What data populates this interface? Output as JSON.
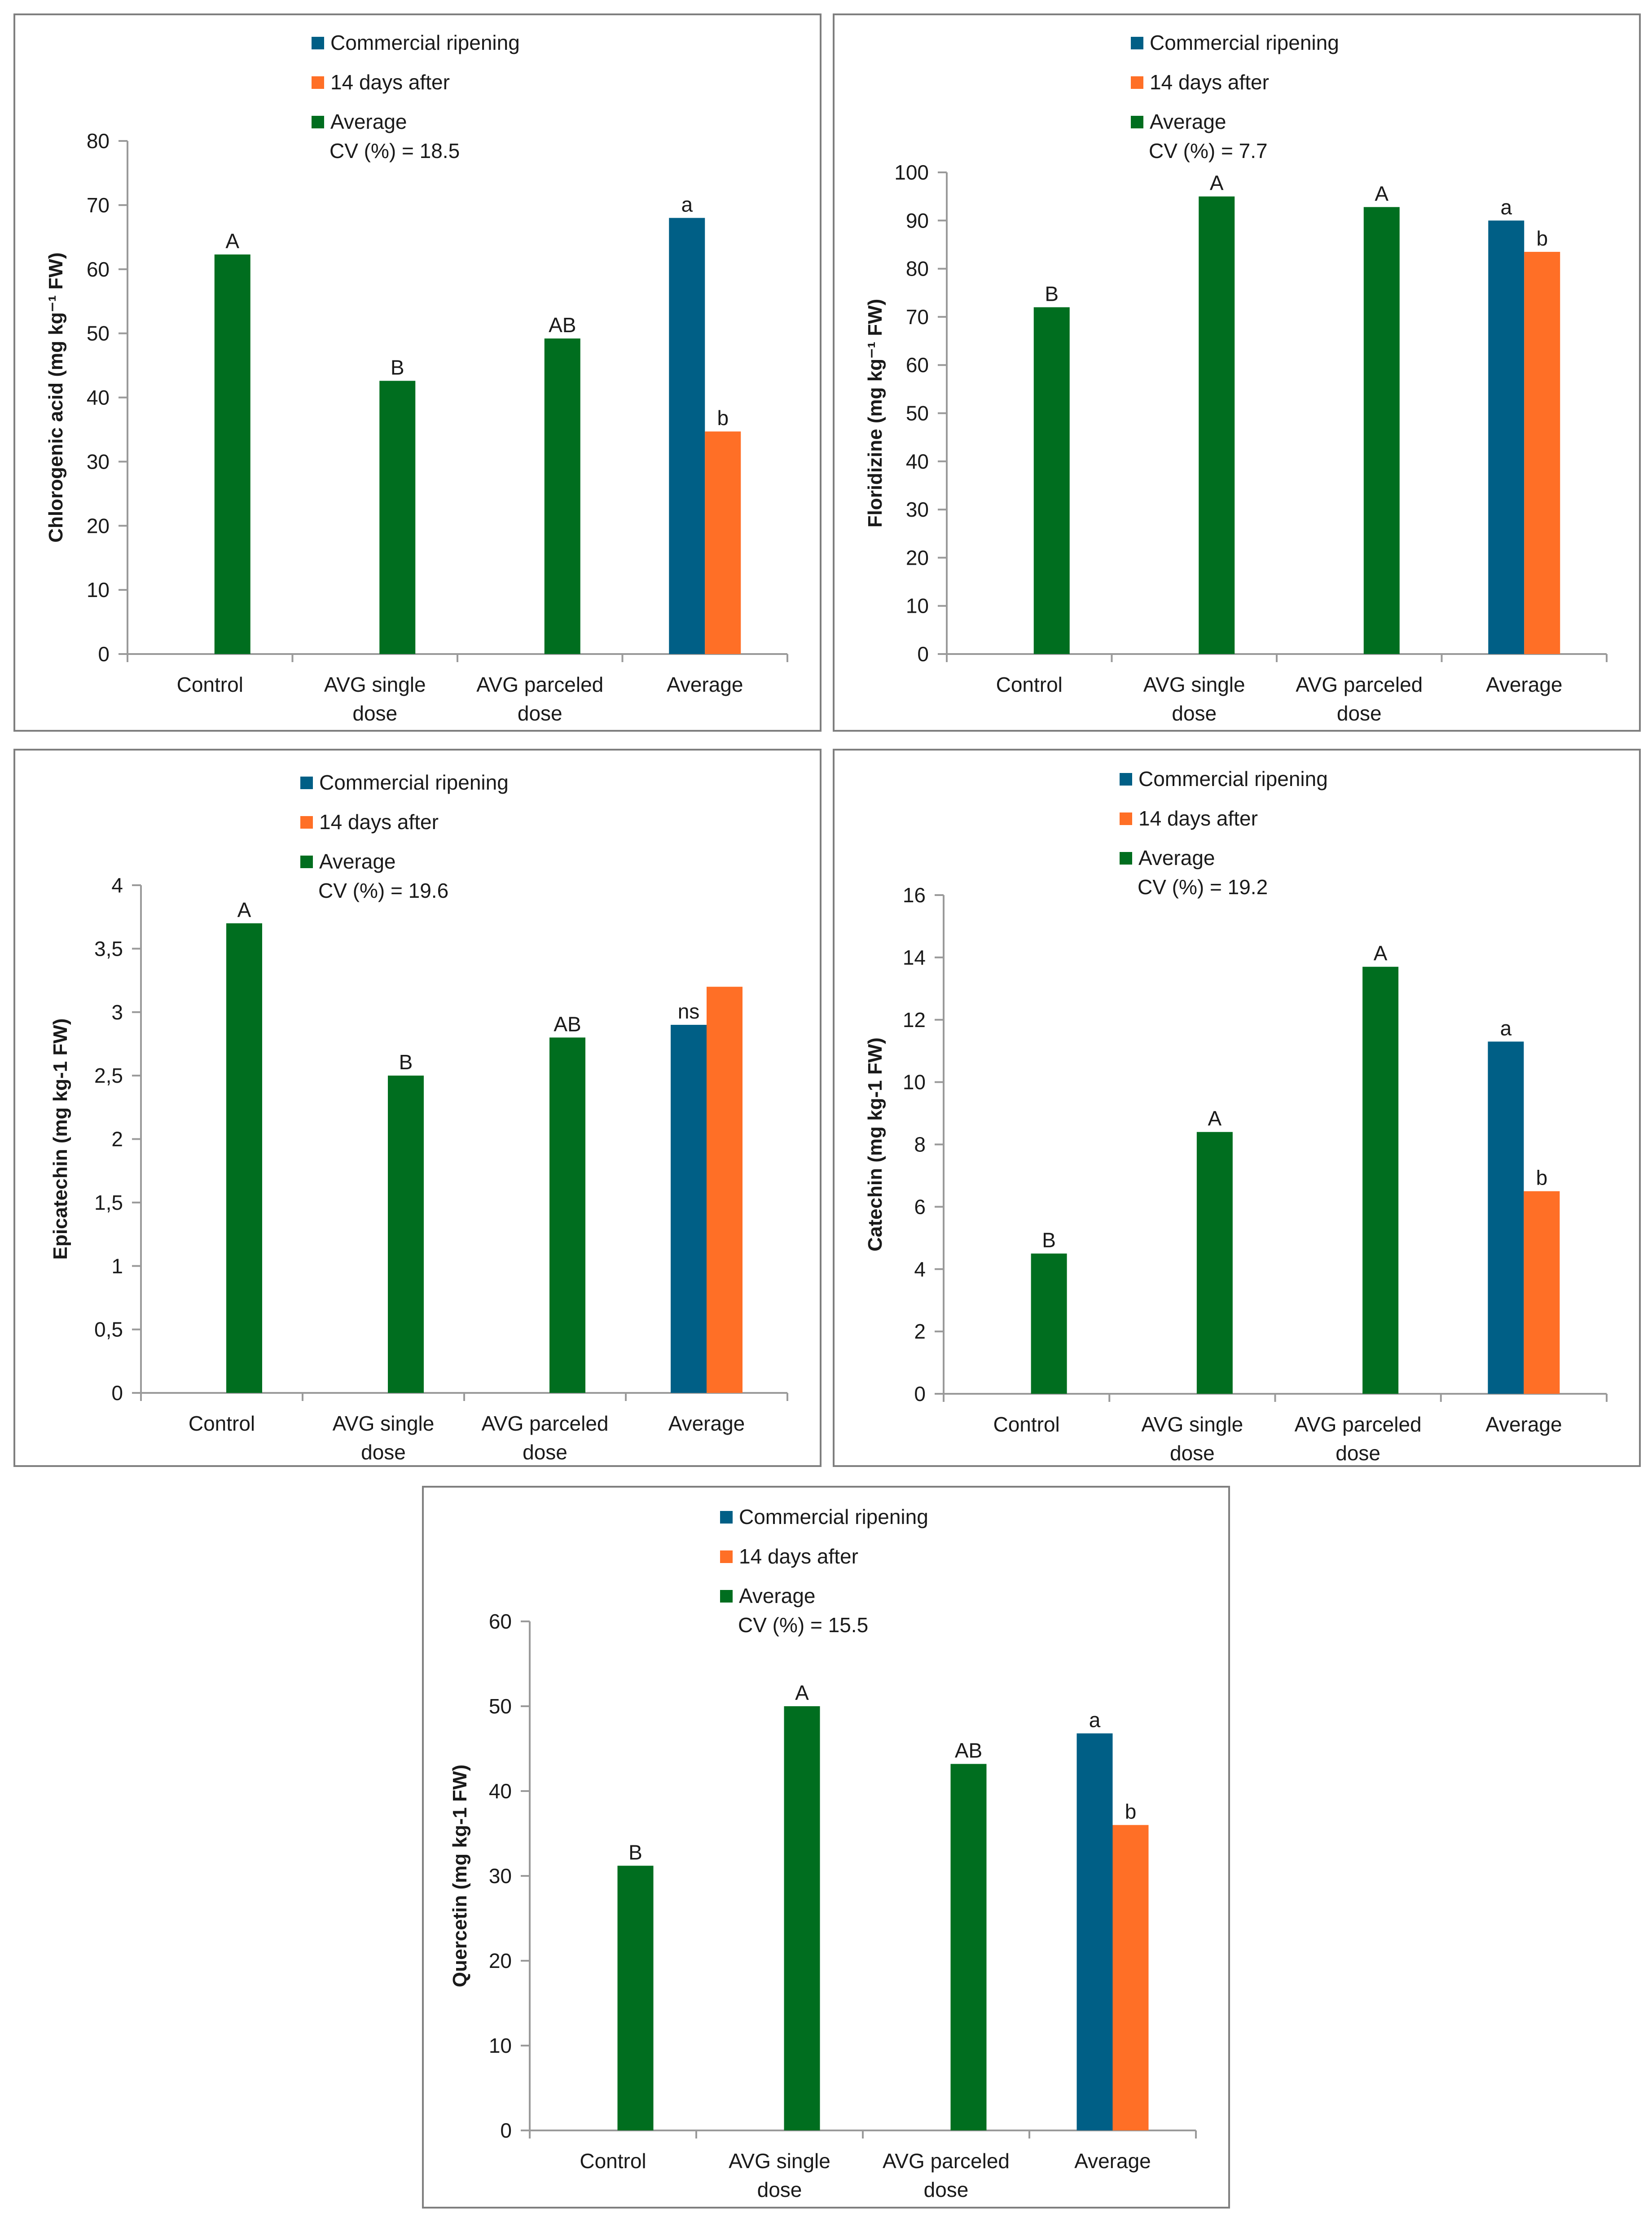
{
  "legend": {
    "commercial": "Commercial ripening",
    "after": "14 days after",
    "average": "Average"
  },
  "colors": {
    "commercial": "#005F86",
    "after": "#FF6F26",
    "average": "#006E1F",
    "axis": "#9a9a9a",
    "text": "#1a1a1a"
  },
  "chart_data": [
    {
      "type": "bar",
      "ylabel": "Chlorogenic acid (mg kg⁻¹ FW)",
      "cv": "CV (%) = 18.5",
      "ylim": [
        0,
        80
      ],
      "yticks": [
        "0",
        "10",
        "20",
        "30",
        "40",
        "50",
        "60",
        "70",
        "80"
      ],
      "categories": [
        [
          "Control"
        ],
        [
          "AVG single",
          "dose"
        ],
        [
          "AVG parceled",
          "dose"
        ],
        [
          "Average"
        ]
      ],
      "treatments": [
        {
          "value": 62.3,
          "label": "A"
        },
        {
          "value": 42.6,
          "label": "B"
        },
        {
          "value": 49.2,
          "label": "AB"
        }
      ],
      "average": {
        "commercial": {
          "value": 68.0,
          "label": "a"
        },
        "after": {
          "value": 34.7,
          "label": "b"
        }
      }
    },
    {
      "type": "bar",
      "ylabel": "Floridizine (mg kg⁻¹ FW)",
      "cv": "CV (%) = 7.7",
      "ylim": [
        0,
        100
      ],
      "yticks": [
        "0",
        "10",
        "20",
        "30",
        "40",
        "50",
        "60",
        "70",
        "80",
        "90",
        "100"
      ],
      "categories": [
        [
          "Control"
        ],
        [
          "AVG single",
          "dose"
        ],
        [
          "AVG parceled",
          "dose"
        ],
        [
          "Average"
        ]
      ],
      "treatments": [
        {
          "value": 72.0,
          "label": "B"
        },
        {
          "value": 95.0,
          "label": "A"
        },
        {
          "value": 92.8,
          "label": "A"
        }
      ],
      "average": {
        "commercial": {
          "value": 90.0,
          "label": "a"
        },
        "after": {
          "value": 83.5,
          "label": "b"
        }
      }
    },
    {
      "type": "bar",
      "ylabel": "Epicatechin (mg kg-1 FW)",
      "cv": "CV (%) = 19.6",
      "ylim": [
        0,
        4
      ],
      "yticks": [
        "0",
        "0,5",
        "1",
        "1,5",
        "2",
        "2,5",
        "3",
        "3,5",
        "4"
      ],
      "categories": [
        [
          "Control"
        ],
        [
          "AVG single",
          "dose"
        ],
        [
          "AVG parceled",
          "dose"
        ],
        [
          "Average"
        ]
      ],
      "treatments": [
        {
          "value": 3.7,
          "label": "A"
        },
        {
          "value": 2.5,
          "label": "B"
        },
        {
          "value": 2.8,
          "label": "AB"
        }
      ],
      "average": {
        "commercial": {
          "value": 2.9,
          "label": "ns"
        },
        "after": {
          "value": 3.2,
          "label": ""
        }
      }
    },
    {
      "type": "bar",
      "ylabel": "Catechin (mg kg-1 FW)",
      "cv": "CV (%) = 19.2",
      "ylim": [
        0,
        16
      ],
      "yticks": [
        "0",
        "2",
        "4",
        "6",
        "8",
        "10",
        "12",
        "14",
        "16"
      ],
      "categories": [
        [
          "Control"
        ],
        [
          "AVG single",
          "dose"
        ],
        [
          "AVG parceled",
          "dose"
        ],
        [
          "Average"
        ]
      ],
      "treatments": [
        {
          "value": 4.5,
          "label": "B"
        },
        {
          "value": 8.4,
          "label": "A"
        },
        {
          "value": 13.7,
          "label": "A"
        }
      ],
      "average": {
        "commercial": {
          "value": 11.3,
          "label": "a"
        },
        "after": {
          "value": 6.5,
          "label": "b"
        }
      }
    },
    {
      "type": "bar",
      "ylabel": "Quercetin (mg kg-1 FW)",
      "cv": "CV (%) = 15.5",
      "ylim": [
        0,
        60
      ],
      "yticks": [
        "0",
        "10",
        "20",
        "30",
        "40",
        "50",
        "60"
      ],
      "categories": [
        [
          "Control"
        ],
        [
          "AVG single",
          "dose"
        ],
        [
          "AVG parceled",
          "dose"
        ],
        [
          "Average"
        ]
      ],
      "treatments": [
        {
          "value": 31.2,
          "label": "B"
        },
        {
          "value": 50.0,
          "label": "A"
        },
        {
          "value": 43.2,
          "label": "AB"
        }
      ],
      "average": {
        "commercial": {
          "value": 46.8,
          "label": "a"
        },
        "after": {
          "value": 36.0,
          "label": "b"
        }
      }
    }
  ]
}
